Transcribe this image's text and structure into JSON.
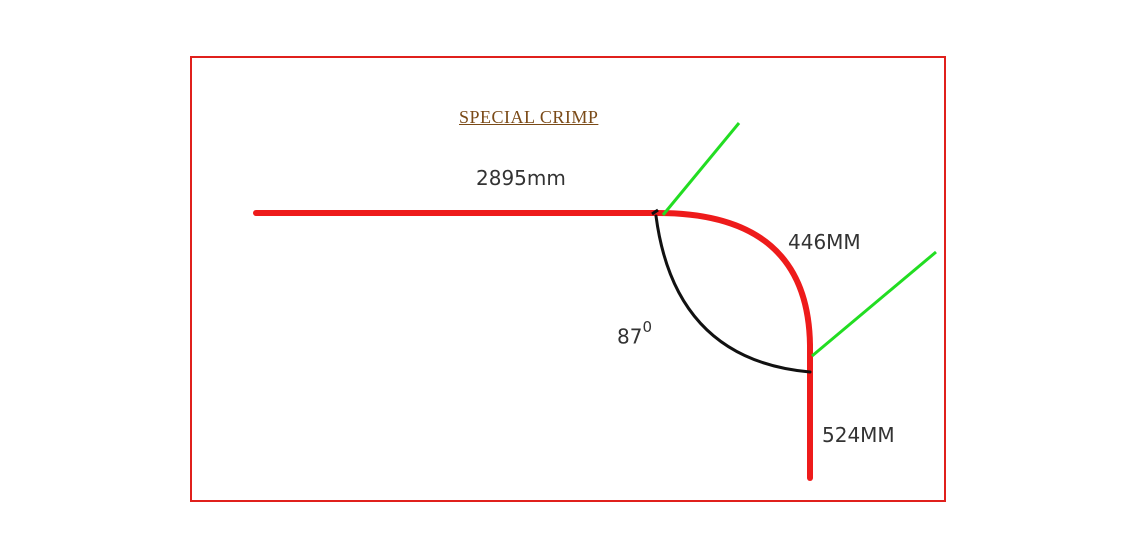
{
  "title": "SPECIAL  CRIMP",
  "dimensions": {
    "straight_top": "2895mm",
    "bend_arc": "446MM",
    "straight_down": "524MM"
  },
  "angle": {
    "value": "87",
    "unit_mark": "0"
  },
  "colors": {
    "frame": "#e0201c",
    "profile": "#ee1b1b",
    "angle_arc": "#111111",
    "leader_lines": "#22dd22",
    "title": "#7a4a17"
  }
}
